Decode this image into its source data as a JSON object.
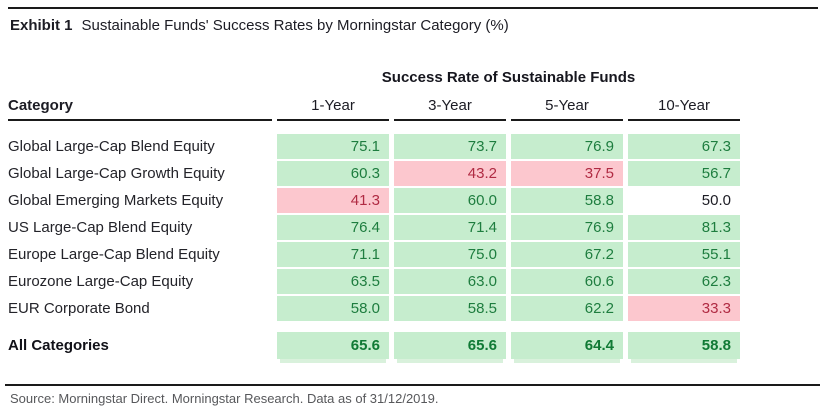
{
  "exhibit": {
    "label": "Exhibit 1",
    "title": "Sustainable Funds' Success Rates by Morningstar Category (%)"
  },
  "table": {
    "group_header": "Success Rate of Sustainable Funds",
    "category_header": "Category",
    "period_headers": {
      "y1": "1-Year",
      "y3": "3-Year",
      "y5": "5-Year",
      "y10": "10-Year"
    },
    "rows": [
      {
        "label": "Global Large-Cap Blend Equity",
        "values": [
          {
            "v": "75.1",
            "state": "positive"
          },
          {
            "v": "73.7",
            "state": "positive"
          },
          {
            "v": "76.9",
            "state": "positive"
          },
          {
            "v": "67.3",
            "state": "positive"
          }
        ]
      },
      {
        "label": "Global Large-Cap Growth Equity",
        "values": [
          {
            "v": "60.3",
            "state": "positive"
          },
          {
            "v": "43.2",
            "state": "negative"
          },
          {
            "v": "37.5",
            "state": "negative"
          },
          {
            "v": "56.7",
            "state": "positive"
          }
        ]
      },
      {
        "label": "Global Emerging Markets Equity",
        "values": [
          {
            "v": "41.3",
            "state": "negative"
          },
          {
            "v": "60.0",
            "state": "positive"
          },
          {
            "v": "58.8",
            "state": "positive"
          },
          {
            "v": "50.0",
            "state": "neutral"
          }
        ]
      },
      {
        "label": "US Large-Cap Blend Equity",
        "values": [
          {
            "v": "76.4",
            "state": "positive"
          },
          {
            "v": "71.4",
            "state": "positive"
          },
          {
            "v": "76.9",
            "state": "positive"
          },
          {
            "v": "81.3",
            "state": "positive"
          }
        ]
      },
      {
        "label": "Europe Large-Cap Blend Equity",
        "values": [
          {
            "v": "71.1",
            "state": "positive"
          },
          {
            "v": "75.0",
            "state": "positive"
          },
          {
            "v": "67.2",
            "state": "positive"
          },
          {
            "v": "55.1",
            "state": "positive"
          }
        ]
      },
      {
        "label": "Eurozone Large-Cap Equity",
        "values": [
          {
            "v": "63.5",
            "state": "positive"
          },
          {
            "v": "63.0",
            "state": "positive"
          },
          {
            "v": "60.6",
            "state": "positive"
          },
          {
            "v": "62.3",
            "state": "positive"
          }
        ]
      },
      {
        "label": "EUR Corporate Bond",
        "values": [
          {
            "v": "58.0",
            "state": "positive"
          },
          {
            "v": "58.5",
            "state": "positive"
          },
          {
            "v": "62.2",
            "state": "positive"
          },
          {
            "v": "33.3",
            "state": "negative"
          }
        ]
      }
    ],
    "total": {
      "label": "All Categories",
      "values": [
        {
          "v": "65.6",
          "state": "positive"
        },
        {
          "v": "65.6",
          "state": "positive"
        },
        {
          "v": "64.4",
          "state": "positive"
        },
        {
          "v": "58.8",
          "state": "positive"
        }
      ]
    }
  },
  "source": "Source: Morningstar Direct. Morningstar Research. Data as of 31/12/2019.",
  "colors": {
    "positive_bg": "#c6edce",
    "positive_text": "#1e7d3f",
    "negative_bg": "#fcc7ce",
    "negative_text": "#b02b43",
    "rule": "#1a1a1a",
    "source_text": "#57585b"
  },
  "chart_data": {
    "type": "table",
    "title": "Sustainable Funds' Success Rates by Morningstar Category (%)",
    "group_header": "Success Rate of Sustainable Funds",
    "columns": [
      "Category",
      "1-Year",
      "3-Year",
      "5-Year",
      "10-Year"
    ],
    "rows": [
      [
        "Global Large-Cap Blend Equity",
        75.1,
        73.7,
        76.9,
        67.3
      ],
      [
        "Global Large-Cap Growth Equity",
        60.3,
        43.2,
        37.5,
        56.7
      ],
      [
        "Global Emerging Markets Equity",
        41.3,
        60.0,
        58.8,
        50.0
      ],
      [
        "US Large-Cap Blend Equity",
        76.4,
        71.4,
        76.9,
        81.3
      ],
      [
        "Europe Large-Cap Blend Equity",
        71.1,
        75.0,
        67.2,
        55.1
      ],
      [
        "Eurozone Large-Cap Equity",
        63.5,
        63.0,
        60.6,
        62.3
      ],
      [
        "EUR Corporate Bond",
        58.0,
        58.5,
        62.2,
        33.3
      ],
      [
        "All Categories",
        65.6,
        65.6,
        64.4,
        58.8
      ]
    ],
    "legend_rule": "cells > 50 shaded light green with dark green text; cells < 50 shaded light red with dark red text; exactly 50.0 unshaded",
    "source": "Source: Morningstar Direct. Morningstar Research. Data as of 31/12/2019."
  }
}
